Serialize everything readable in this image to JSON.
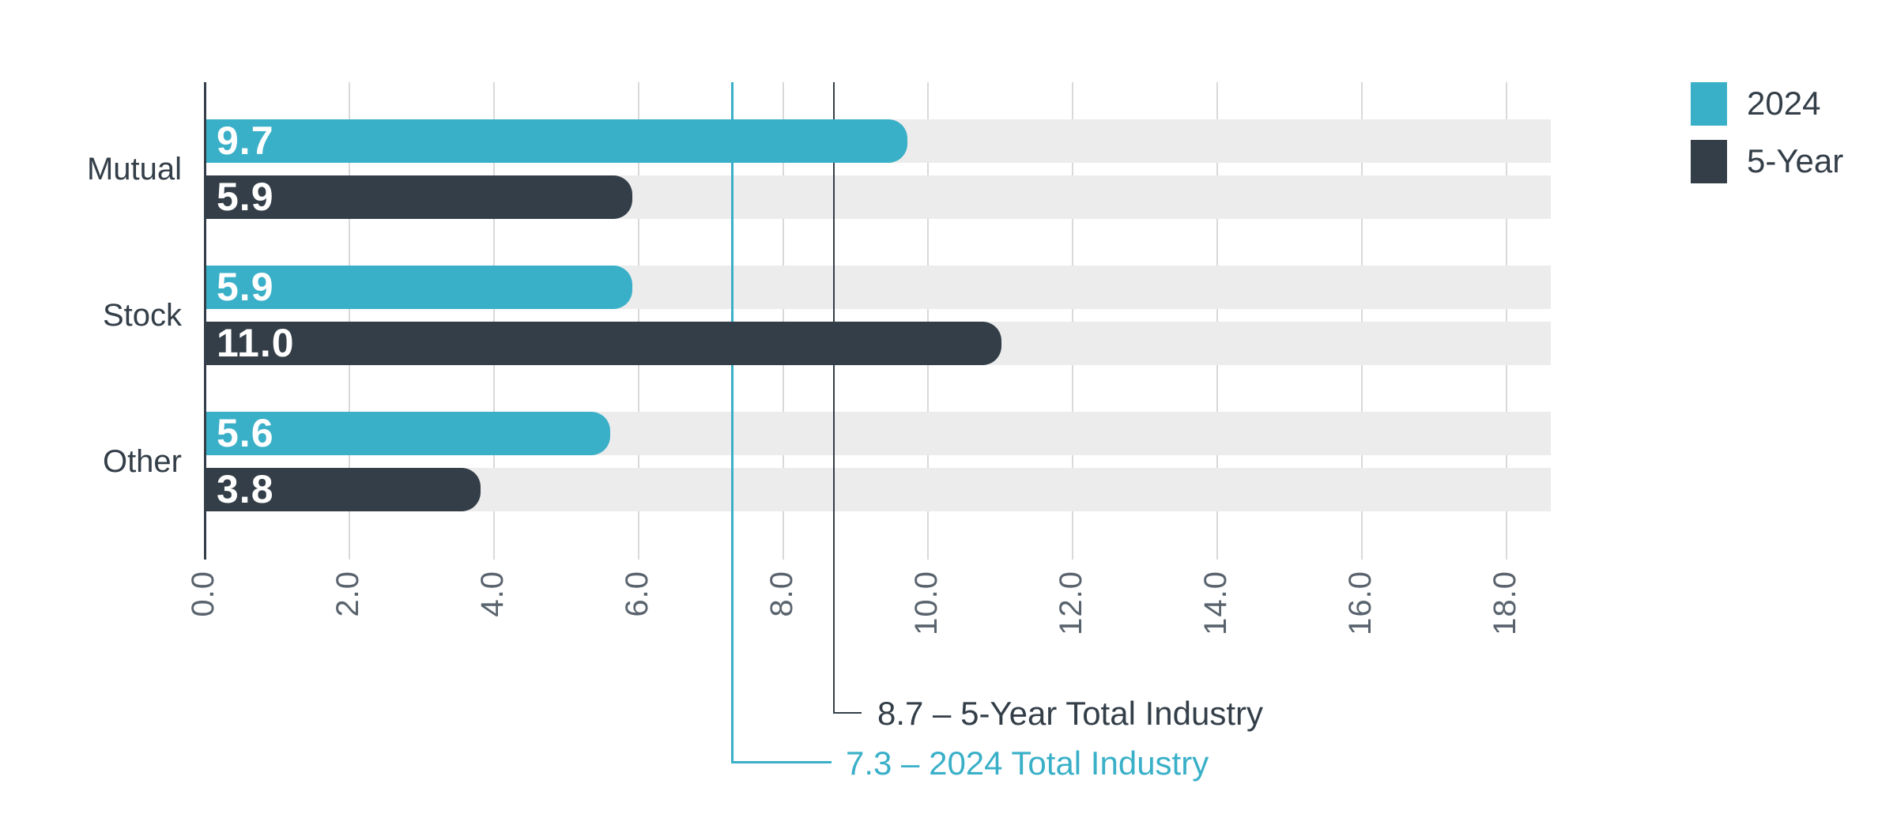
{
  "chart_data": {
    "type": "bar",
    "orientation": "horizontal",
    "title": "",
    "categories": [
      "Mutual",
      "Stock",
      "Other"
    ],
    "series": [
      {
        "name": "2024",
        "color": "#3AB0C8",
        "values": [
          9.7,
          5.9,
          5.6
        ],
        "labels": [
          "9.7",
          "5.9",
          "5.6"
        ]
      },
      {
        "name": "5-Year",
        "color": "#333E48",
        "values": [
          5.9,
          11.0,
          3.8
        ],
        "labels": [
          "5.9",
          "11.0",
          "3.8"
        ]
      }
    ],
    "x_ticks": [
      {
        "value": 0,
        "label": "0.0"
      },
      {
        "value": 2,
        "label": "2.0"
      },
      {
        "value": 4,
        "label": "4.0"
      },
      {
        "value": 6,
        "label": "6.0"
      },
      {
        "value": 8,
        "label": "8.0"
      },
      {
        "value": 10,
        "label": "10.0"
      },
      {
        "value": 12,
        "label": "12.0"
      },
      {
        "value": 14,
        "label": "14.0"
      },
      {
        "value": 16,
        "label": "16.0"
      },
      {
        "value": 18,
        "label": "18.0"
      }
    ],
    "xlim": [
      0,
      18.6
    ],
    "grid": "vertical-major",
    "reference_lines": [
      {
        "value": 7.3,
        "label": "7.3 – 2024 Total Industry",
        "series": "2024",
        "color": "#3AB0C8"
      },
      {
        "value": 8.7,
        "label": "8.7 – 5-Year Total Industry",
        "series": "5-Year",
        "color": "#333E48"
      }
    ],
    "legend": {
      "position": "top-right",
      "entries": [
        {
          "label": "2024",
          "color": "#3AB0C8"
        },
        {
          "label": "5-Year",
          "color": "#333E48"
        }
      ]
    },
    "colors": {
      "track": "#ECECEC",
      "gridline": "#D9D9D9",
      "axis": "#333E48",
      "tick_label": "#59636D",
      "category_label": "#333E48",
      "bar_value_label": "#FFFFFF"
    }
  }
}
